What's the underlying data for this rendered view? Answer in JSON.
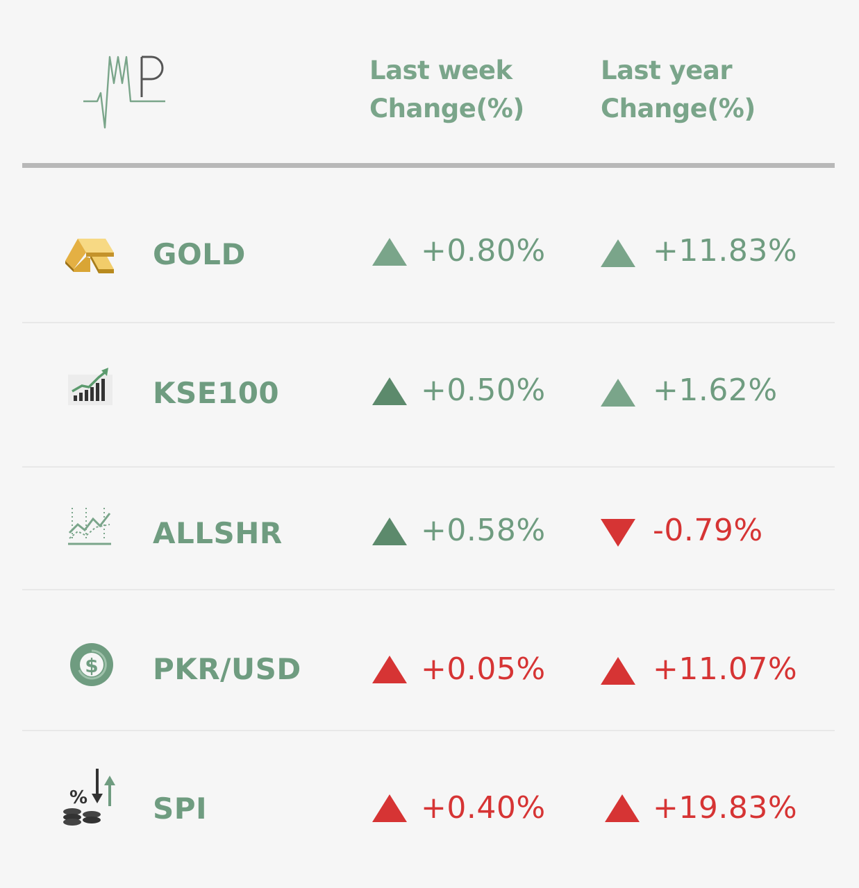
{
  "brand": {
    "logo_text": "AMP",
    "accent": "#6f9c80"
  },
  "header": {
    "week_line1": "Last week",
    "week_line2": "Change(%)",
    "year_line1": "Last year",
    "year_line2": "Change(%)"
  },
  "colors": {
    "up_green": "#7aa58a",
    "up_dark_green": "#5c8a6c",
    "red": "#d63434"
  },
  "rows": [
    {
      "name": "GOLD",
      "icon": "gold-bar-icon",
      "week": "+0.80%",
      "week_dir": "up",
      "year": "+11.83%",
      "year_dir": "up"
    },
    {
      "name": "KSE100",
      "icon": "bar-chart-growth-icon",
      "week": "+0.50%",
      "week_dir": "up",
      "year": "+1.62%",
      "year_dir": "up"
    },
    {
      "name": "ALLSHR",
      "icon": "line-chart-icon",
      "week": "+0.58%",
      "week_dir": "up",
      "year": "-0.79%",
      "year_dir": "down"
    },
    {
      "name": "PKR/USD",
      "icon": "dollar-coin-icon",
      "week": "+0.05%",
      "week_dir": "up-red",
      "year": "+11.07%",
      "year_dir": "up-red"
    },
    {
      "name": "SPI",
      "icon": "percent-coins-arrows-icon",
      "week": "+0.40%",
      "week_dir": "up-red",
      "year": "+19.83%",
      "year_dir": "up-red"
    }
  ]
}
